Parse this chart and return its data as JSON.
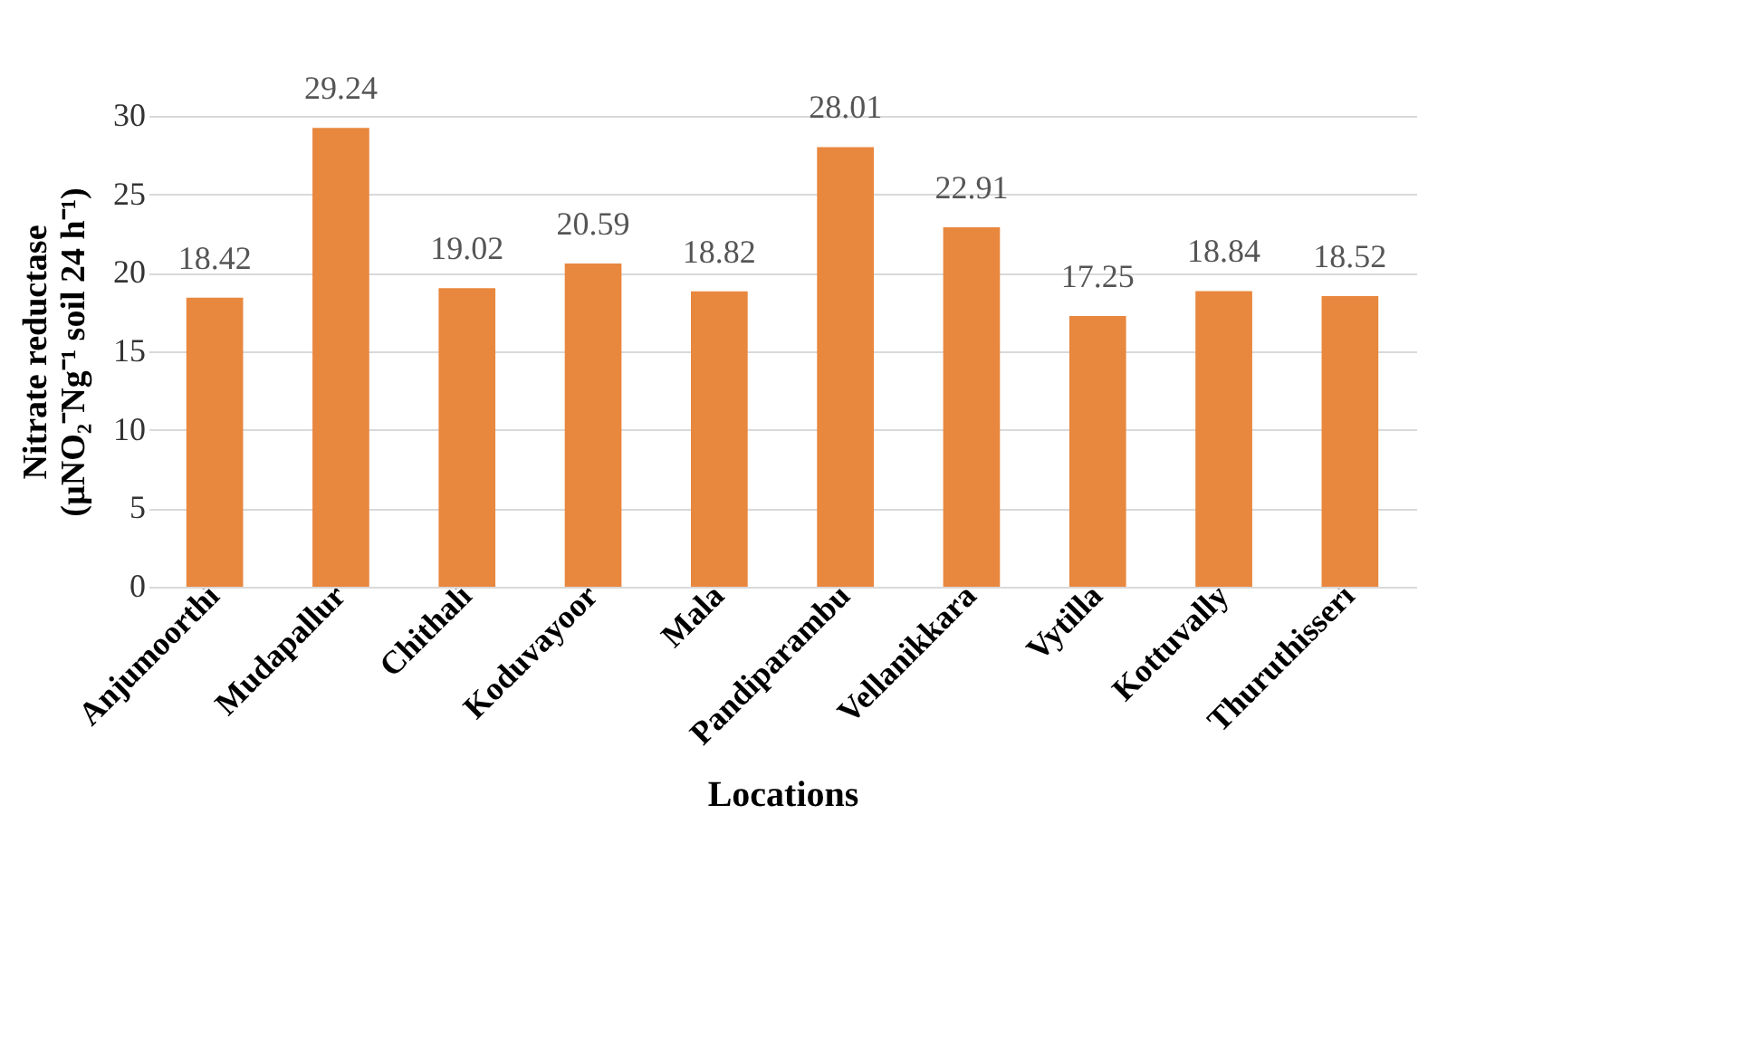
{
  "chart_data": {
    "type": "bar",
    "xlabel": "Locations",
    "ylabel": "Nitrate reductase (µNO₂⁻Ng⁻¹ soil 24 h⁻¹)",
    "categories": [
      "Anjumoorthi",
      "Mudapallur",
      "Chithali",
      "Koduvayoor",
      "Mala",
      "Pandiparambu",
      "Vellanikkara",
      "Vytilla",
      "Kottuvally",
      "Thuruthisseri"
    ],
    "values": [
      18.42,
      29.24,
      19.02,
      20.59,
      18.82,
      28.01,
      22.91,
      17.25,
      18.84,
      18.52
    ],
    "color": "#e8873e",
    "ylim": [
      0,
      30
    ],
    "yticks": [
      0,
      5,
      10,
      15,
      20,
      25,
      30
    ],
    "grid": "y",
    "data_labels": true
  }
}
